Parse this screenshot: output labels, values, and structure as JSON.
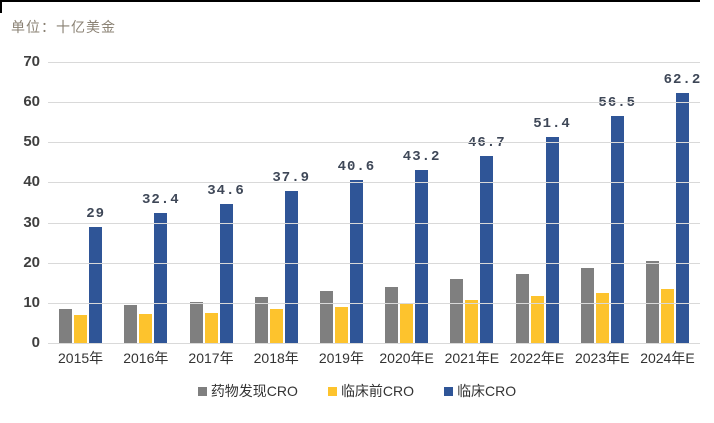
{
  "page": {
    "background": "#ffffff"
  },
  "unit_label": "单位：十亿美金",
  "chart_data": {
    "type": "bar",
    "title": "",
    "unit_label": "单位：十亿美金",
    "categories": [
      "2015年",
      "2016年",
      "2017年",
      "2018年",
      "2019年",
      "2020年E",
      "2021年E",
      "2022年E",
      "2023年E",
      "2024年E"
    ],
    "series": [
      {
        "name": "药物发现CRO",
        "color": "#7f7f7f",
        "values": [
          8.4,
          9.6,
          10.3,
          11.5,
          12.9,
          14.0,
          16.0,
          17.2,
          18.8,
          20.4
        ]
      },
      {
        "name": "临床前CRO",
        "color": "#fdc32d",
        "values": [
          6.9,
          7.2,
          7.6,
          8.6,
          9.0,
          9.8,
          10.8,
          11.8,
          12.5,
          13.4
        ]
      },
      {
        "name": "临床CRO",
        "color": "#2f5597",
        "values": [
          29,
          32.4,
          34.6,
          37.9,
          40.6,
          43.2,
          46.7,
          51.4,
          56.5,
          62.2
        ],
        "data_labels": [
          "29",
          "32.4",
          "34.6",
          "37.9",
          "40.6",
          "43.2",
          "46.7",
          "51.4",
          "56.5",
          "62.2"
        ]
      }
    ],
    "ylim": [
      0,
      70
    ],
    "yticks": [
      0,
      10,
      20,
      30,
      40,
      50,
      60,
      70
    ],
    "grid": true,
    "legend_position": "bottom",
    "colors": {
      "gridline": "#d9d9d9",
      "axis_text": "#3f3f3f",
      "data_label": "#3e4757",
      "unit_text": "#8a8173",
      "border": "#000000"
    }
  }
}
